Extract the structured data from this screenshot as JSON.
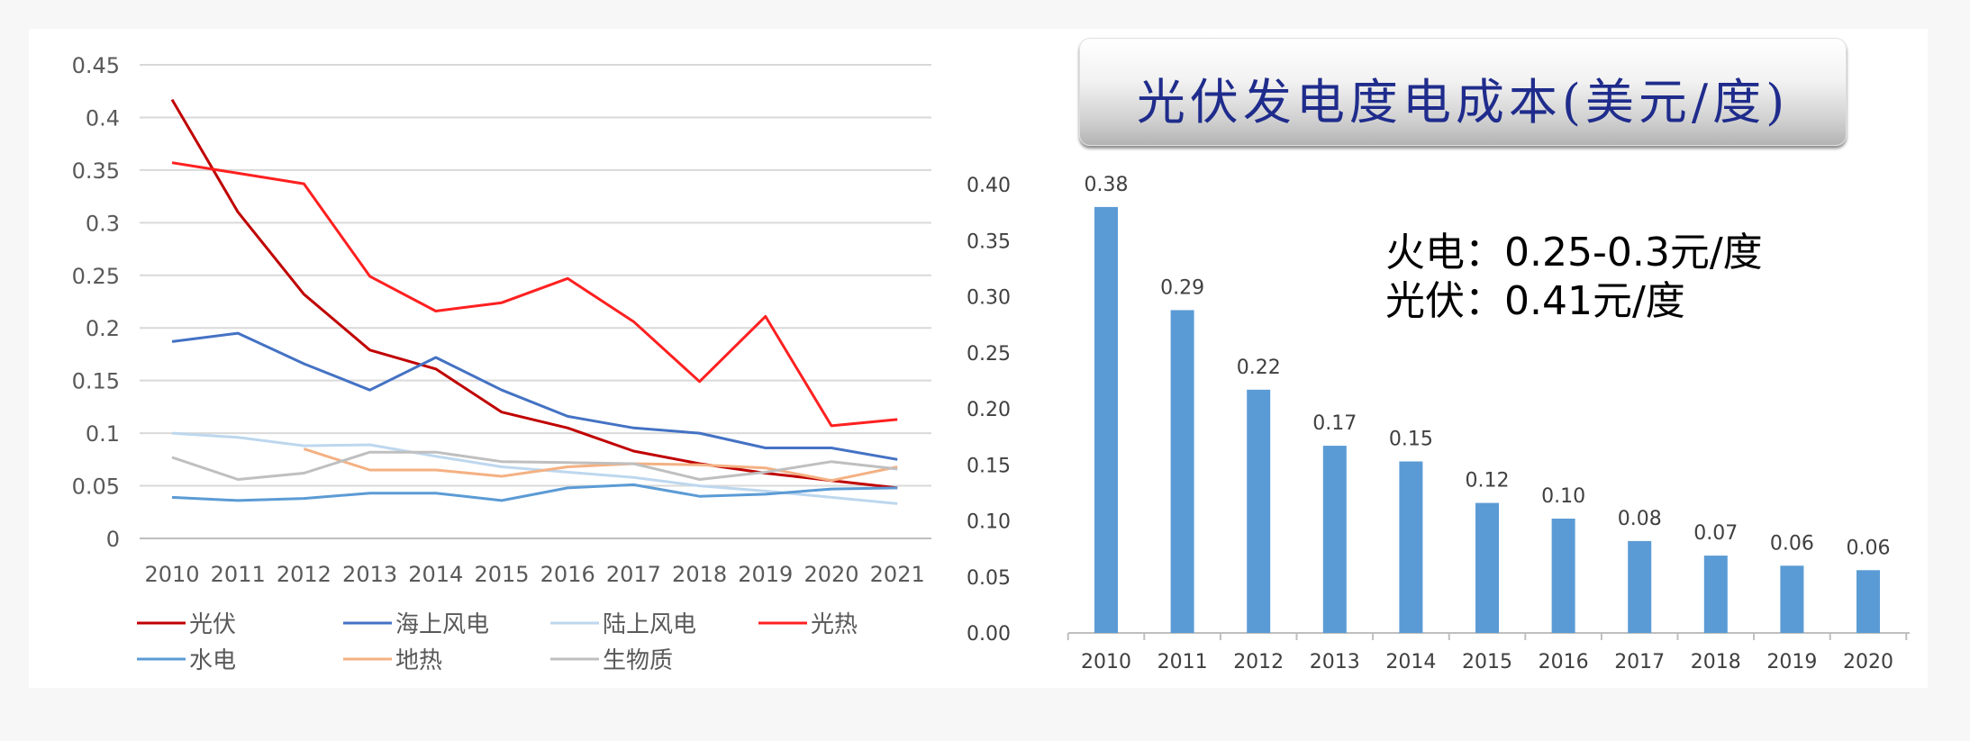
{
  "title_right": "光伏发电度电成本(美元/度)",
  "annotations": [
    "火电：0.25-0.3元/度",
    "光伏：0.41元/度"
  ],
  "chart_data": [
    {
      "type": "line",
      "x": [
        "2010",
        "2011",
        "2012",
        "2013",
        "2014",
        "2015",
        "2016",
        "2017",
        "2018",
        "2019",
        "2020",
        "2021"
      ],
      "ylim": [
        0,
        0.45
      ],
      "yticks": [
        "0",
        "0.05",
        "0.1",
        "0.15",
        "0.2",
        "0.25",
        "0.3",
        "0.35",
        "0.4",
        "0.45"
      ],
      "grid": true,
      "legend": "bottom",
      "series": [
        {
          "name": "光伏",
          "color": "#c00000",
          "values": [
            0.417,
            0.31,
            0.232,
            0.179,
            0.161,
            0.12,
            0.105,
            0.083,
            0.071,
            0.062,
            0.055,
            0.048
          ]
        },
        {
          "name": "海上风电",
          "color": "#4472c4",
          "values": [
            0.187,
            0.195,
            0.166,
            0.141,
            0.172,
            0.141,
            0.116,
            0.105,
            0.1,
            0.086,
            0.086,
            0.075
          ]
        },
        {
          "name": "陆上风电",
          "color": "#bdd7ee",
          "values": [
            0.1,
            0.096,
            0.088,
            0.089,
            0.078,
            0.068,
            0.063,
            0.058,
            0.05,
            0.045,
            0.039,
            0.033
          ]
        },
        {
          "name": "光热",
          "color": "#ff2020",
          "values": [
            0.357,
            0.347,
            0.337,
            0.249,
            0.216,
            0.224,
            0.247,
            0.206,
            0.149,
            0.211,
            0.107,
            0.113
          ]
        },
        {
          "name": "水电",
          "color": "#5b9bd5",
          "values": [
            0.039,
            0.036,
            0.038,
            0.043,
            0.043,
            0.036,
            0.048,
            0.051,
            0.04,
            0.042,
            0.047,
            0.048
          ]
        },
        {
          "name": "地热",
          "color": "#f4b183",
          "values": [
            null,
            null,
            0.085,
            0.065,
            0.065,
            0.059,
            0.068,
            0.071,
            0.07,
            0.067,
            0.055,
            0.068
          ]
        },
        {
          "name": "生物质",
          "color": "#bfbfbf",
          "values": [
            0.077,
            0.056,
            0.062,
            0.082,
            0.082,
            0.073,
            0.072,
            0.071,
            0.056,
            0.063,
            0.073,
            0.066
          ]
        }
      ]
    },
    {
      "type": "bar",
      "categories": [
        "2010",
        "2011",
        "2012",
        "2013",
        "2014",
        "2015",
        "2016",
        "2017",
        "2018",
        "2019",
        "2020"
      ],
      "values": [
        0.38,
        0.29,
        0.22,
        0.17,
        0.15,
        0.12,
        0.1,
        0.08,
        0.07,
        0.06,
        0.06
      ],
      "bar_heights": [
        0.38,
        0.288,
        0.217,
        0.167,
        0.153,
        0.116,
        0.102,
        0.082,
        0.069,
        0.06,
        0.056
      ],
      "ylim": [
        0,
        0.4
      ],
      "yticks": [
        "0.00",
        "0.05",
        "0.10",
        "0.15",
        "0.20",
        "0.25",
        "0.30",
        "0.35",
        "0.40"
      ],
      "color": "#5b9bd5",
      "grid": false
    }
  ]
}
